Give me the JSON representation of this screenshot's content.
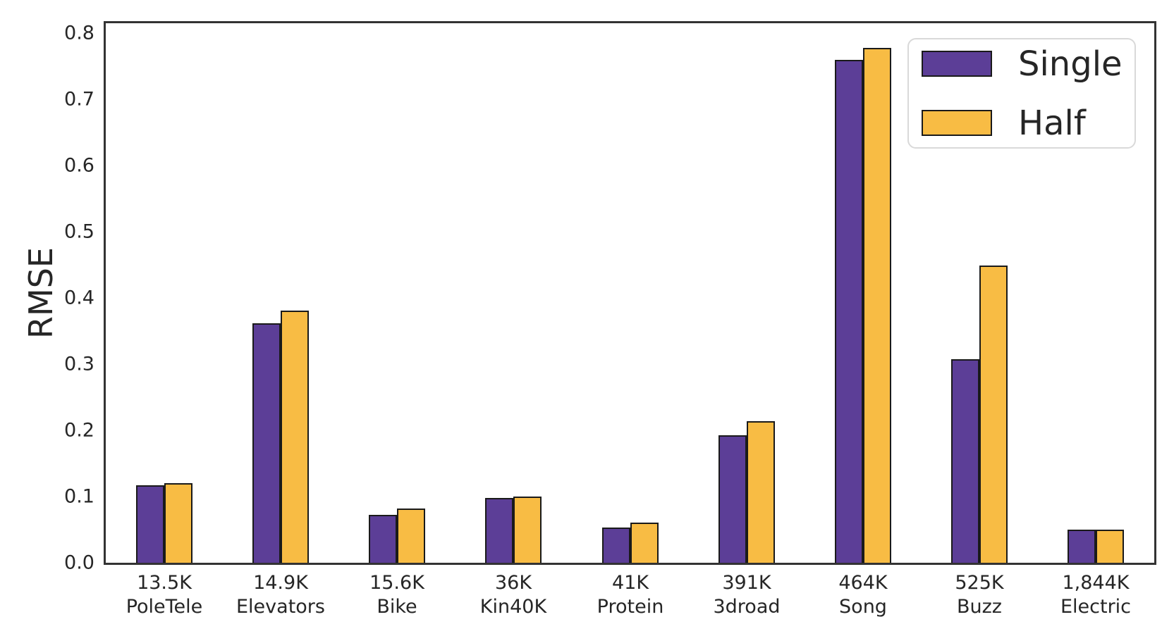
{
  "chart_data": {
    "type": "bar",
    "title": "",
    "xlabel": "",
    "ylabel": "RMSE",
    "ylim": [
      0,
      0.815
    ],
    "yticks": [
      0.0,
      0.1,
      0.2,
      0.3,
      0.4,
      0.5,
      0.6,
      0.7,
      0.8
    ],
    "ytick_labels": [
      "0.0",
      "0.1",
      "0.2",
      "0.3",
      "0.4",
      "0.5",
      "0.6",
      "0.7",
      "0.8"
    ],
    "grid": false,
    "legend_position": "upper right",
    "categories": [
      {
        "size": "13.5K",
        "name": "PoleTele"
      },
      {
        "size": "14.9K",
        "name": "Elevators"
      },
      {
        "size": "15.6K",
        "name": "Bike"
      },
      {
        "size": "36K",
        "name": "Kin40K"
      },
      {
        "size": "41K",
        "name": "Protein"
      },
      {
        "size": "391K",
        "name": "3droad"
      },
      {
        "size": "464K",
        "name": "Song"
      },
      {
        "size": "525K",
        "name": "Buzz"
      },
      {
        "size": "1,844K",
        "name": "Electric"
      }
    ],
    "series": [
      {
        "name": "Single",
        "color": "#5C3E97",
        "values": [
          0.117,
          0.362,
          0.072,
          0.098,
          0.053,
          0.193,
          0.76,
          0.307,
          0.05
        ]
      },
      {
        "name": "Half",
        "color": "#F8BC44",
        "values": [
          0.12,
          0.381,
          0.082,
          0.1,
          0.061,
          0.214,
          0.778,
          0.449,
          0.05
        ]
      }
    ],
    "bar_edge_color": "#1a1a1a"
  },
  "colors": {
    "axis_spine": "#333333",
    "text": "#262626",
    "legend_border": "#d9d9d9",
    "background": "#ffffff"
  }
}
